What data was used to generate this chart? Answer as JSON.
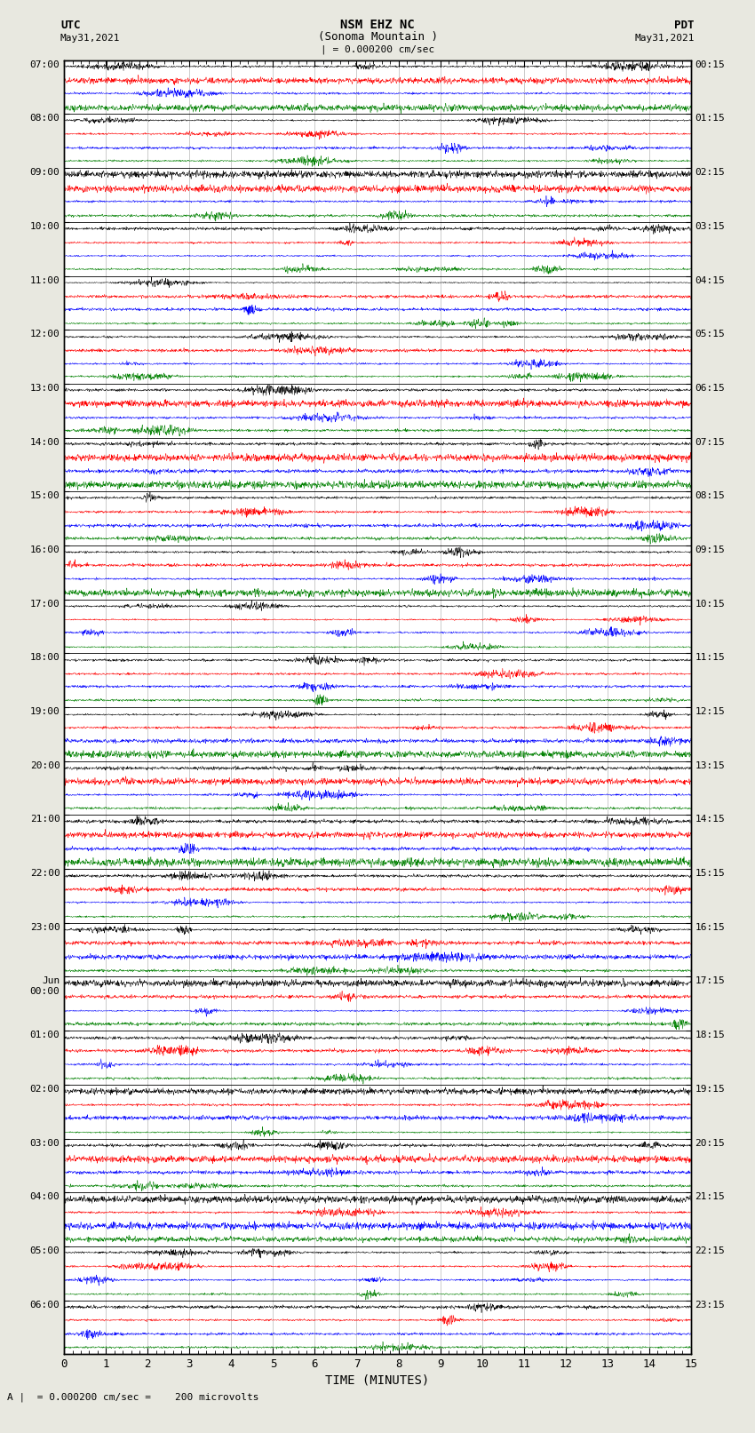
{
  "title_line1": "NSM EHZ NC",
  "title_line2": "(Sonoma Mountain )",
  "title_scale": "| = 0.000200 cm/sec",
  "left_label_top": "UTC",
  "left_label_date": "May31,2021",
  "right_label_top": "PDT",
  "right_label_date": "May31,2021",
  "bottom_label": "TIME (MINUTES)",
  "bottom_note": "A |  = 0.000200 cm/sec =    200 microvolts",
  "xlabel_ticks": [
    0,
    1,
    2,
    3,
    4,
    5,
    6,
    7,
    8,
    9,
    10,
    11,
    12,
    13,
    14,
    15
  ],
  "utc_times": [
    "07:00",
    "08:00",
    "09:00",
    "10:00",
    "11:00",
    "12:00",
    "13:00",
    "14:00",
    "15:00",
    "16:00",
    "17:00",
    "18:00",
    "19:00",
    "20:00",
    "21:00",
    "22:00",
    "23:00",
    "Jun\n00:00",
    "01:00",
    "02:00",
    "03:00",
    "04:00",
    "05:00",
    "06:00"
  ],
  "pdt_times": [
    "00:15",
    "01:15",
    "02:15",
    "03:15",
    "04:15",
    "05:15",
    "06:15",
    "07:15",
    "08:15",
    "09:15",
    "10:15",
    "11:15",
    "12:15",
    "13:15",
    "14:15",
    "15:15",
    "16:15",
    "17:15",
    "18:15",
    "19:15",
    "20:15",
    "21:15",
    "22:15",
    "23:15"
  ],
  "colors": [
    "black",
    "red",
    "blue",
    "green"
  ],
  "num_hours": 24,
  "traces_per_hour": 4,
  "fig_width": 8.5,
  "fig_height": 16.13,
  "bg_color": "#e8e8e0",
  "plot_bg_color": "white",
  "trace_amplitude": 0.42,
  "noise_seed": 42
}
